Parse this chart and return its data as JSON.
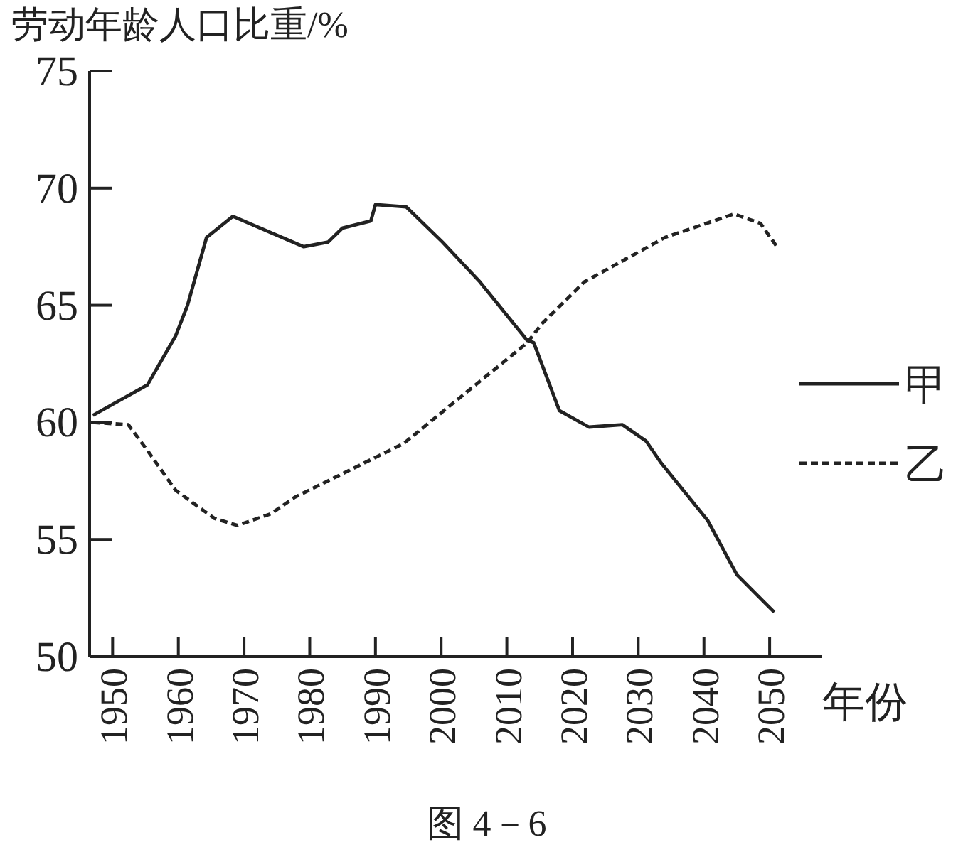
{
  "chart_data": {
    "type": "line",
    "ylabel": "劳动年龄人口比重/%",
    "xlabel": "年份",
    "annotations": [
      "图 4－6"
    ],
    "xlim": [
      1946.5,
      2058
    ],
    "ylim": [
      50,
      75
    ],
    "xticks": [
      1950,
      1960,
      1970,
      1980,
      1990,
      2000,
      2010,
      2020,
      2030,
      2040,
      2050
    ],
    "yticks": [
      50,
      55,
      60,
      65,
      70,
      75
    ],
    "grid": false,
    "legend": "right",
    "marker": "none",
    "series": [
      {
        "name": "甲",
        "color": "#222222",
        "line_style": "solid",
        "x": [
          1947,
          1955.3,
          1959.6,
          1961.4,
          1964.3,
          1968.3,
          1979.1,
          1982.8,
          1985,
          1989.3,
          1990,
          1994.7,
          2000.2,
          2005.9,
          2013.1,
          2014.1,
          2018,
          2022.5,
          2027.6,
          2031.2,
          2033.4,
          2040.6,
          2045,
          2048.9,
          2050.7
        ],
        "values": [
          60.3,
          61.6,
          63.7,
          65.0,
          67.9,
          68.8,
          67.5,
          67.7,
          68.3,
          68.6,
          69.3,
          69.2,
          67.7,
          66.0,
          63.5,
          63.4,
          60.5,
          59.8,
          59.9,
          59.2,
          58.3,
          55.8,
          53.5,
          52.4,
          51.9
        ]
      },
      {
        "name": "乙",
        "color": "#222222",
        "line_style": "dashed",
        "x": [
          1947,
          1952.4,
          1955.3,
          1959.6,
          1965.5,
          1969,
          1974.1,
          1977.7,
          1994.3,
          2013.1,
          2015.3,
          2021.8,
          2034.1,
          2044.6,
          2048.6,
          2051.1
        ],
        "values": [
          60.0,
          59.9,
          58.8,
          57.1,
          55.9,
          55.6,
          56.1,
          56.8,
          59.1,
          63.4,
          64.2,
          66.0,
          67.9,
          68.9,
          68.5,
          67.5
        ]
      }
    ]
  }
}
